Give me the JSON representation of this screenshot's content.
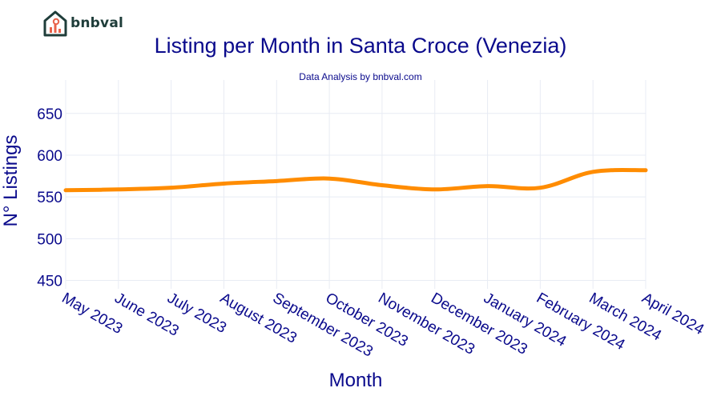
{
  "brand": {
    "name": "bnbval",
    "logo_icon": "house-chart-icon",
    "colors": {
      "house": "#1f3d3a",
      "accent": "#e8624a"
    }
  },
  "chart_data": {
    "type": "line",
    "title": "Listing per Month in Santa Croce (Venezia)",
    "subtitle": "Data Analysis by bnbval.com",
    "xlabel": "Month",
    "ylabel": "N° Listings",
    "categories": [
      "May 2023",
      "June 2023",
      "July 2023",
      "August 2023",
      "September 2023",
      "October 2023",
      "November 2023",
      "December 2023",
      "January 2024",
      "February 2024",
      "March 2024",
      "April 2024"
    ],
    "series": [
      {
        "values": [
          558,
          559,
          561,
          566,
          569,
          572,
          564,
          559,
          563,
          561,
          580,
          582
        ],
        "color": "#ff8c00"
      }
    ],
    "ylim": [
      440,
      690
    ],
    "yticks": [
      450,
      500,
      550,
      600,
      650
    ],
    "grid": true,
    "colors": {
      "text": "#0a0a8c",
      "grid": "#e8ecf4",
      "line": "#ff8c00"
    }
  }
}
